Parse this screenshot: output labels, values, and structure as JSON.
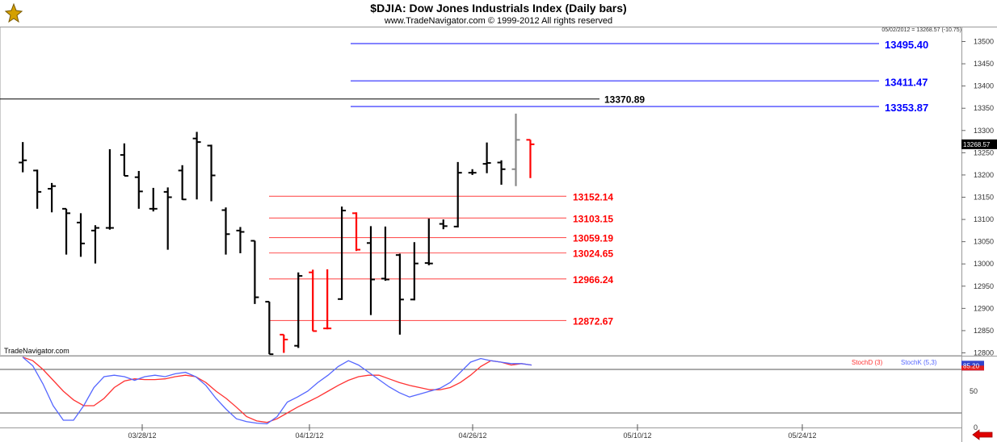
{
  "header": {
    "title": "$DJIA:  Dow Jones Industrials Index  (Daily bars)",
    "copyright": "www.TradeNavigator.com © 1999-2012 All rights reserved",
    "quote": "05/02/2012 = 13268.57 (-10.75)",
    "watermark": "TradeNavigator.com"
  },
  "colors": {
    "bar_up": "#000000",
    "bar_down": "#ff0000",
    "bar_last": "#888888",
    "resistance": "#6666ff",
    "resistance_text": "#0000ff",
    "support": "#ff5555",
    "support_text": "#ff0000",
    "pivot": "#000000",
    "stoch_d": "#ff3333",
    "stoch_k": "#5566ff"
  },
  "chart_data": [
    {
      "type": "ohlc",
      "title": "$DJIA:  Dow Jones Industrials Index  (Daily bars)",
      "ylim": [
        12790,
        13525
      ],
      "yticks": [
        12800,
        12850,
        12900,
        12950,
        13000,
        13050,
        13100,
        13150,
        13200,
        13250,
        13300,
        13350,
        13400,
        13450,
        13500
      ],
      "xticks": [
        "03/28/12",
        "04/12/12",
        "04/26/12",
        "05/10/12",
        "05/24/12"
      ],
      "current_price_label": "13268.57",
      "bars": [
        {
          "o": 13228,
          "h": 13274,
          "l": 13206,
          "c": 13233,
          "color": "black"
        },
        {
          "o": 13210,
          "h": 13212,
          "l": 13124,
          "c": 13162,
          "color": "black"
        },
        {
          "o": 13169,
          "h": 13182,
          "l": 13116,
          "c": 13175,
          "color": "black"
        },
        {
          "o": 13124,
          "h": 13124,
          "l": 13021,
          "c": 13114,
          "color": "black"
        },
        {
          "o": 13093,
          "h": 13114,
          "l": 13016,
          "c": 13046,
          "color": "black"
        },
        {
          "o": 13075,
          "h": 13087,
          "l": 13001,
          "c": 13081,
          "color": "black"
        },
        {
          "o": 13081,
          "h": 13258,
          "l": 13077,
          "c": 13081,
          "color": "black"
        },
        {
          "o": 13245,
          "h": 13271,
          "l": 13198,
          "c": 13198,
          "color": "black"
        },
        {
          "o": 13195,
          "h": 13209,
          "l": 13124,
          "c": 13163,
          "color": "black"
        },
        {
          "o": 13124,
          "h": 13171,
          "l": 13118,
          "c": 13124,
          "color": "black"
        },
        {
          "o": 13162,
          "h": 13172,
          "l": 13032,
          "c": 13150,
          "color": "black"
        },
        {
          "o": 13210,
          "h": 13222,
          "l": 13144,
          "c": 13145,
          "color": "black"
        },
        {
          "o": 13282,
          "h": 13297,
          "l": 13145,
          "c": 13274,
          "color": "black"
        },
        {
          "o": 13266,
          "h": 13268,
          "l": 13141,
          "c": 13199,
          "color": "black"
        },
        {
          "o": 13121,
          "h": 13127,
          "l": 13021,
          "c": 13067,
          "color": "black"
        },
        {
          "o": 13075,
          "h": 13083,
          "l": 13024,
          "c": 13072,
          "color": "black"
        },
        {
          "o": 13052,
          "h": 13052,
          "l": 12910,
          "c": 12925,
          "color": "black"
        },
        {
          "o": 12915,
          "h": 12915,
          "l": 12797,
          "c": 12797,
          "color": "black"
        },
        {
          "o": 12841,
          "h": 12841,
          "l": 12800,
          "c": 12830,
          "color": "red"
        },
        {
          "o": 12816,
          "h": 12981,
          "l": 12811,
          "c": 12973,
          "color": "black"
        },
        {
          "o": 12981,
          "h": 12987,
          "l": 12849,
          "c": 12849,
          "color": "red"
        },
        {
          "o": 12855,
          "h": 12988,
          "l": 12853,
          "c": 12855,
          "color": "red"
        },
        {
          "o": 12921,
          "h": 13129,
          "l": 12919,
          "c": 13120,
          "color": "black"
        },
        {
          "o": 13114,
          "h": 13116,
          "l": 13029,
          "c": 13032,
          "color": "red"
        },
        {
          "o": 13047,
          "h": 13085,
          "l": 12885,
          "c": 12965,
          "color": "black"
        },
        {
          "o": 12967,
          "h": 13084,
          "l": 12962,
          "c": 12965,
          "color": "black"
        },
        {
          "o": 13020,
          "h": 13023,
          "l": 12841,
          "c": 12920,
          "color": "black"
        },
        {
          "o": 12920,
          "h": 13049,
          "l": 12918,
          "c": 13001,
          "color": "black"
        },
        {
          "o": 13002,
          "h": 13102,
          "l": 12997,
          "c": 13001,
          "color": "black"
        },
        {
          "o": 13090,
          "h": 13100,
          "l": 13078,
          "c": 13085,
          "color": "black"
        },
        {
          "o": 13084,
          "h": 13229,
          "l": 13082,
          "c": 13205,
          "color": "black"
        },
        {
          "o": 13205,
          "h": 13213,
          "l": 13200,
          "c": 13205,
          "color": "black"
        },
        {
          "o": 13225,
          "h": 13273,
          "l": 13204,
          "c": 13227,
          "color": "black"
        },
        {
          "o": 13228,
          "h": 13233,
          "l": 13178,
          "c": 13213,
          "color": "black"
        },
        {
          "o": 13213,
          "h": 13338,
          "l": 13175,
          "c": 13279,
          "color": "gray"
        },
        {
          "o": 13279,
          "h": 13279,
          "l": 13193,
          "c": 13269,
          "color": "red"
        }
      ],
      "levels": {
        "pivot": {
          "value": 13370.89,
          "label": "13370.89"
        },
        "resistance": [
          {
            "value": 13495.4,
            "label": "13495.40"
          },
          {
            "value": 13411.47,
            "label": "13411.47"
          },
          {
            "value": 13353.87,
            "label": "13353.87"
          }
        ],
        "support": [
          {
            "value": 13152.14,
            "label": "13152.14"
          },
          {
            "value": 13103.15,
            "label": "13103.15"
          },
          {
            "value": 13059.19,
            "label": "13059.19"
          },
          {
            "value": 13024.65,
            "label": "13024.65"
          },
          {
            "value": 12966.24,
            "label": "12966.24"
          },
          {
            "value": 12872.67,
            "label": "12872.67"
          }
        ]
      }
    },
    {
      "type": "line",
      "title": "",
      "ylim": [
        0,
        100
      ],
      "yticks": [
        0,
        50
      ],
      "reference_lines": [
        80,
        20
      ],
      "current_value_label": "85.20",
      "series": [
        {
          "name": "StochD (3)",
          "color": "red",
          "values": [
            97,
            92,
            80,
            65,
            50,
            38,
            30,
            30,
            40,
            55,
            64,
            67,
            66,
            66,
            67,
            70,
            72,
            70,
            62,
            50,
            40,
            28,
            15,
            9,
            7,
            12,
            20,
            28,
            35,
            42,
            50,
            58,
            65,
            70,
            72,
            72,
            67,
            62,
            58,
            55,
            52,
            52,
            55,
            62,
            72,
            84,
            92,
            90,
            86,
            88,
            86
          ]
        },
        {
          "name": "StochK (5,3)",
          "color": "blue",
          "values": [
            97,
            85,
            60,
            30,
            10,
            10,
            30,
            55,
            70,
            72,
            70,
            65,
            70,
            72,
            70,
            74,
            76,
            70,
            58,
            40,
            25,
            12,
            8,
            6,
            5,
            15,
            35,
            42,
            50,
            62,
            72,
            84,
            92,
            86,
            76,
            66,
            56,
            48,
            42,
            46,
            50,
            54,
            62,
            76,
            90,
            95,
            92,
            90,
            88,
            88,
            86
          ]
        }
      ]
    }
  ]
}
